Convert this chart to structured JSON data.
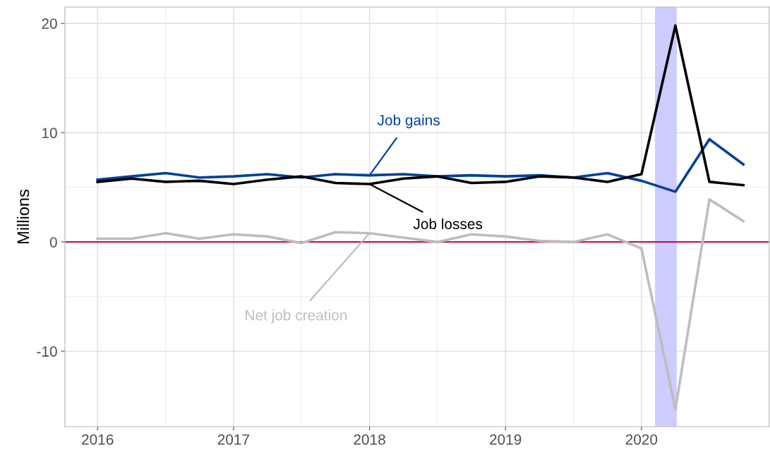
{
  "chart_data": {
    "type": "line",
    "ylabel": "Millions",
    "x": [
      2016.0,
      2016.25,
      2016.5,
      2016.75,
      2017.0,
      2017.25,
      2017.5,
      2017.75,
      2018.0,
      2018.25,
      2018.5,
      2018.75,
      2019.0,
      2019.25,
      2019.5,
      2019.75,
      2020.0,
      2020.25,
      2020.5,
      2020.75
    ],
    "series": [
      {
        "name": "Job gains",
        "color": "#003f9a",
        "values": [
          5.7,
          6.0,
          6.3,
          5.9,
          6.0,
          6.2,
          5.9,
          6.2,
          6.1,
          6.2,
          6.0,
          6.1,
          6.0,
          6.1,
          5.9,
          6.3,
          5.6,
          4.6,
          9.4,
          7.1
        ]
      },
      {
        "name": "Job losses",
        "color": "#000000",
        "values": [
          5.5,
          5.8,
          5.5,
          5.6,
          5.3,
          5.7,
          6.0,
          5.4,
          5.3,
          5.8,
          6.0,
          5.4,
          5.5,
          6.0,
          5.9,
          5.5,
          6.2,
          19.8,
          5.5,
          5.2
        ]
      },
      {
        "name": "Net job creation",
        "color": "#bdbdbd",
        "values": [
          0.3,
          0.3,
          0.8,
          0.3,
          0.7,
          0.5,
          -0.1,
          0.9,
          0.8,
          0.4,
          0.0,
          0.7,
          0.5,
          0.1,
          0.0,
          0.7,
          -0.6,
          -15.3,
          3.9,
          1.9
        ]
      }
    ],
    "ref_lines": [
      {
        "axis": "y",
        "value": 0,
        "color": "#c2185b"
      }
    ],
    "bands": [
      {
        "axis": "x",
        "from": 2020.1,
        "to": 2020.26,
        "color": "#ccccff"
      }
    ],
    "xlim": [
      2015.76,
      2020.94
    ],
    "ylim": [
      -16.9,
      21.5
    ],
    "xticks": [
      2016,
      2017,
      2018,
      2019,
      2020
    ],
    "yticks": [
      -10,
      0,
      10,
      20
    ],
    "grid": true,
    "line_style": "solid",
    "marker": "none"
  }
}
